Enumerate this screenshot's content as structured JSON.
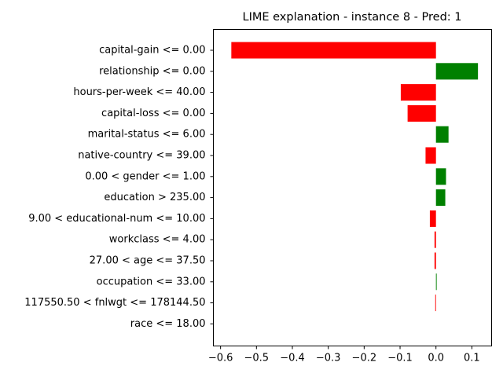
{
  "chart_data": {
    "type": "bar",
    "orientation": "horizontal",
    "title": "LIME explanation - instance 8 - Pred: 1",
    "xlabel": "",
    "ylabel": "",
    "xlim": [
      -0.62,
      0.155
    ],
    "xticks": [
      -0.6,
      -0.5,
      -0.4,
      -0.3,
      -0.2,
      -0.1,
      0.0,
      0.1
    ],
    "xtick_labels": [
      "−0.6",
      "−0.5",
      "−0.4",
      "−0.3",
      "−0.2",
      "−0.1",
      "0.0",
      "0.1"
    ],
    "grid": false,
    "colors": {
      "positive": "#008000",
      "negative": "#ff0000",
      "axis": "#000000"
    },
    "categories": [
      "capital-gain <= 0.00",
      "relationship <= 0.00",
      "hours-per-week <= 40.00",
      "capital-loss <= 0.00",
      "marital-status <= 6.00",
      "native-country <= 39.00",
      "0.00 < gender <= 1.00",
      "education > 235.00",
      "9.00 < educational-num <= 10.00",
      "workclass <= 4.00",
      "27.00 < age <= 37.50",
      "occupation <= 33.00",
      "117550.50 < fnlwgt <= 178144.50",
      "race <= 18.00"
    ],
    "values": [
      -0.57,
      0.117,
      -0.098,
      -0.079,
      0.035,
      -0.029,
      0.028,
      0.026,
      -0.017,
      -0.004,
      -0.004,
      0.002,
      -0.002,
      0.0
    ]
  }
}
